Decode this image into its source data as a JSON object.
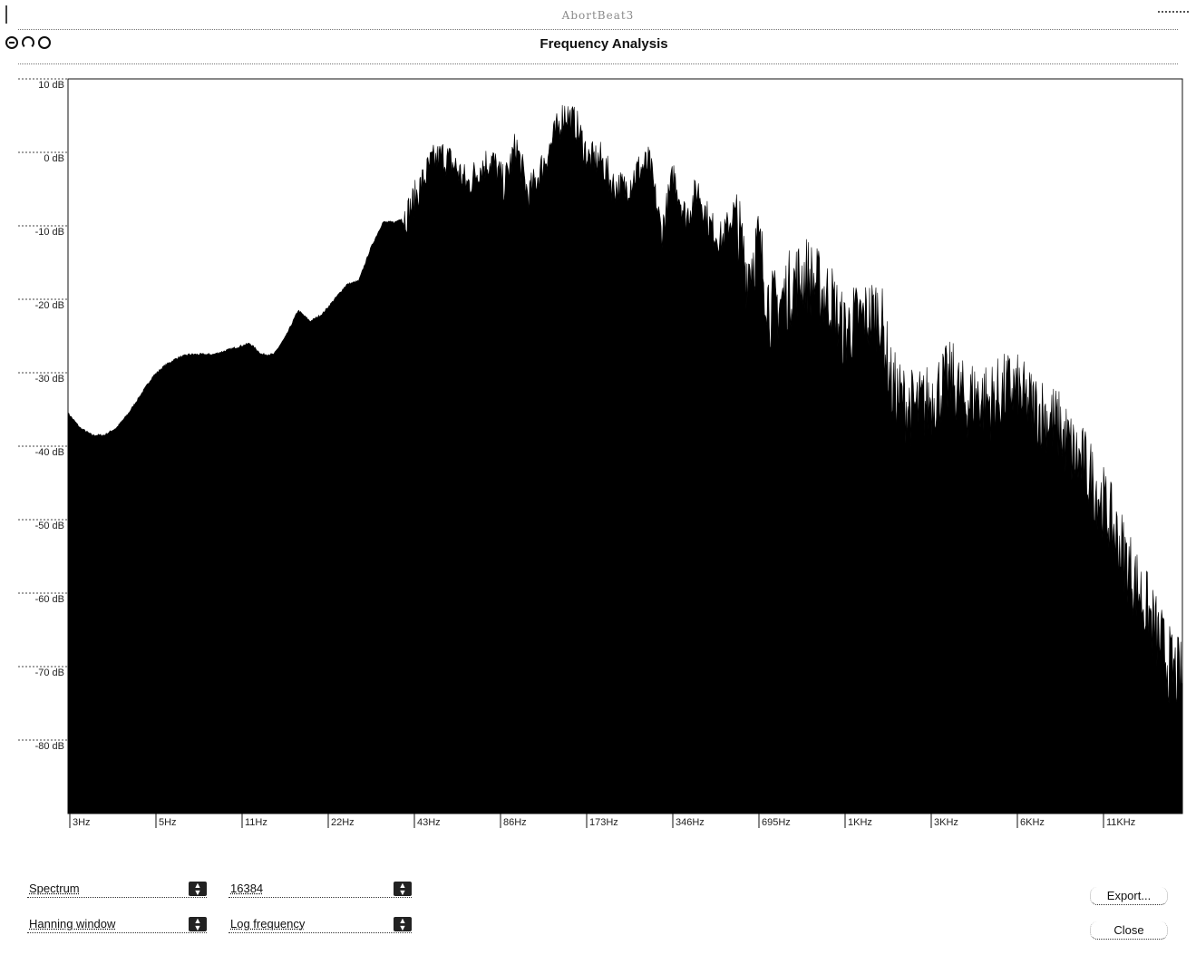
{
  "background_app_title": "AbortBeat3",
  "window": {
    "title": "Frequency Analysis",
    "buttons": [
      "close",
      "minimize",
      "zoom"
    ]
  },
  "chart_data": {
    "type": "area",
    "title": "",
    "xlabel": "",
    "ylabel": "",
    "x_scale": "log",
    "x_tick_labels": [
      "3Hz",
      "5Hz",
      "11Hz",
      "22Hz",
      "43Hz",
      "86Hz",
      "173Hz",
      "346Hz",
      "695Hz",
      "1KHz",
      "3KHz",
      "6KHz",
      "11KHz"
    ],
    "y_tick_labels": [
      "10 dB",
      "0 dB",
      "-10 dB",
      "-20 dB",
      "-30 dB",
      "-40 dB",
      "-50 dB",
      "-60 dB",
      "-70 dB",
      "-80 dB"
    ],
    "ylim": [
      -90,
      10
    ],
    "fill_color": "#000000",
    "grid": false,
    "series": [
      {
        "values_db_at_octave_steps": [
          -35.5,
          -37.5,
          -38.5,
          -38.5,
          -37.5,
          -35.5,
          -33,
          -30.5,
          -29,
          -28,
          -27.5,
          -27.5,
          -27.5,
          -27,
          -26.5,
          -26,
          -27.5,
          -27.5,
          -25,
          -21.5,
          -23,
          -22,
          -20,
          -18,
          -17.5,
          -13,
          -9.5,
          -9.5,
          -8.5,
          -5,
          -1.5,
          -0.5,
          -2,
          -4.5,
          -2,
          -1,
          -4.5,
          1,
          -6,
          -2.5,
          1.5,
          5.5,
          3.5,
          -1,
          -1,
          -4.5,
          -5,
          -2.5,
          -1.5,
          -11,
          -3,
          -9,
          -5,
          -10,
          -12,
          -8,
          -16,
          -12.5,
          -21.5,
          -20,
          -17.5,
          -16.5,
          -18.5,
          -20,
          -24.5,
          -23,
          -22.5,
          -21.5,
          -32,
          -34,
          -35,
          -34,
          -32,
          -31,
          -34,
          -33,
          -34,
          -33,
          -32,
          -34,
          -35,
          -36,
          -38,
          -41,
          -43,
          -46,
          -50,
          -54,
          -58,
          -62,
          -66,
          -70,
          -72
        ]
      }
    ]
  },
  "controls": {
    "analysis_type": "Spectrum",
    "fft_size": "16384",
    "window_type": "Hanning window",
    "frequency_scale": "Log frequency",
    "export_label": "Export...",
    "close_label": "Close"
  }
}
